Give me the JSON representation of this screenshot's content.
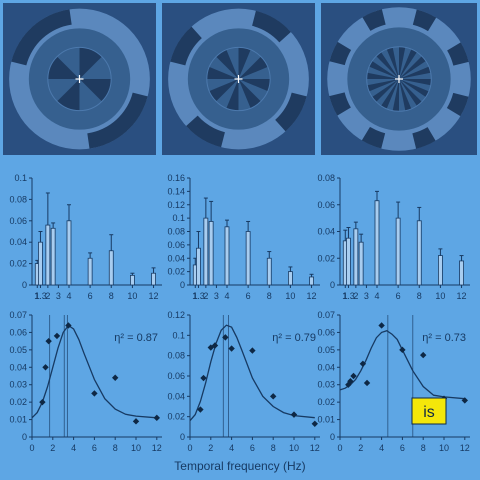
{
  "colors": {
    "page_bg": "#5ea6e4",
    "stimulus_bg": "#2a4f80",
    "ring_light": "#5b88bd",
    "ring_dark": "#1f3b60",
    "bar_fill": "#a8cdf0",
    "ink": "#173a63",
    "curve": "#173a63",
    "marker": "#0e2845",
    "callout_fill": "#f4e70a"
  },
  "stimuli": [
    {
      "name": "stimulus-4-cycle",
      "segments": 4
    },
    {
      "name": "stimulus-8-cycle",
      "segments": 8
    },
    {
      "name": "stimulus-16-cycle",
      "segments": 16
    }
  ],
  "xlabel": "Temporal frequency (Hz)",
  "callout_text": "is",
  "chart_data": [
    {
      "type": "bar",
      "panel": "top-left",
      "x": [
        1,
        1.3,
        2,
        2.5,
        4,
        6,
        8,
        10,
        12
      ],
      "values": [
        0.02,
        0.04,
        0.056,
        0.053,
        0.06,
        0.025,
        0.032,
        0.009,
        0.011
      ],
      "errors": [
        0.003,
        0.01,
        0.03,
        0.005,
        0.015,
        0.005,
        0.015,
        0.002,
        0.005
      ],
      "xlim": [
        0.5,
        12.8
      ],
      "ylim": [
        0,
        0.1
      ],
      "yticks": [
        0,
        0.02,
        0.04,
        0.06,
        0.08,
        0.1
      ],
      "ytick_labels": [
        "0",
        "0.02",
        "0.04",
        "0.06",
        "0.08",
        "0.1"
      ],
      "xticks": [
        1,
        1.3,
        2,
        3,
        4,
        6,
        8,
        10,
        12
      ],
      "xtick_labels": [
        "1",
        "1.3",
        "2",
        "3",
        "4",
        "6",
        "8",
        "10",
        "12"
      ]
    },
    {
      "type": "bar",
      "panel": "top-middle",
      "x": [
        1,
        1.3,
        2,
        2.5,
        4,
        6,
        8,
        10,
        12
      ],
      "values": [
        0.03,
        0.055,
        0.1,
        0.095,
        0.087,
        0.08,
        0.04,
        0.02,
        0.012
      ],
      "errors": [
        0.01,
        0.025,
        0.03,
        0.03,
        0.01,
        0.015,
        0.01,
        0.007,
        0.004
      ],
      "xlim": [
        0.5,
        12.8
      ],
      "ylim": [
        0,
        0.16
      ],
      "yticks": [
        0,
        0.02,
        0.04,
        0.06,
        0.08,
        0.1,
        0.12,
        0.14,
        0.16
      ],
      "ytick_labels": [
        "0",
        "0.02",
        "0.04",
        "0.06",
        "0.08",
        "0.1",
        "0.12",
        "0.14",
        "0.16"
      ],
      "xticks": [
        1,
        1.3,
        2,
        3,
        4,
        6,
        8,
        10,
        12
      ],
      "xtick_labels": [
        "1",
        "1.3",
        "2",
        "3",
        "4",
        "6",
        "8",
        "10",
        "12"
      ]
    },
    {
      "type": "bar",
      "panel": "top-right",
      "x": [
        1,
        1.3,
        2,
        2.5,
        4,
        6,
        8,
        10,
        12
      ],
      "values": [
        0.033,
        0.035,
        0.042,
        0.032,
        0.063,
        0.05,
        0.048,
        0.022,
        0.018
      ],
      "errors": [
        0.008,
        0.008,
        0.005,
        0.006,
        0.007,
        0.012,
        0.01,
        0.005,
        0.004
      ],
      "xlim": [
        0.5,
        12.8
      ],
      "ylim": [
        0,
        0.08
      ],
      "yticks": [
        0,
        0.02,
        0.04,
        0.06,
        0.08
      ],
      "ytick_labels": [
        "0",
        "0.02",
        "0.04",
        "0.06",
        "0.08"
      ],
      "xticks": [
        1,
        1.3,
        2,
        3,
        4,
        6,
        8,
        10,
        12
      ],
      "xtick_labels": [
        "1",
        "1.3",
        "2",
        "3",
        "4",
        "6",
        "8",
        "10",
        "12"
      ]
    },
    {
      "type": "scatter",
      "panel": "bottom-left",
      "points": [
        [
          1,
          0.02
        ],
        [
          1.3,
          0.04
        ],
        [
          1.6,
          0.055
        ],
        [
          2.4,
          0.058
        ],
        [
          3.5,
          0.064
        ],
        [
          6,
          0.025
        ],
        [
          8,
          0.034
        ],
        [
          10,
          0.009
        ],
        [
          12,
          0.011
        ]
      ],
      "curve": [
        [
          0,
          0.011
        ],
        [
          0.5,
          0.014
        ],
        [
          1,
          0.02
        ],
        [
          1.5,
          0.029
        ],
        [
          2,
          0.04
        ],
        [
          2.5,
          0.051
        ],
        [
          3,
          0.06
        ],
        [
          3.5,
          0.064
        ],
        [
          4,
          0.062
        ],
        [
          4.5,
          0.056
        ],
        [
          5,
          0.048
        ],
        [
          6,
          0.033
        ],
        [
          7,
          0.022
        ],
        [
          8,
          0.016
        ],
        [
          9,
          0.013
        ],
        [
          10,
          0.012
        ],
        [
          12,
          0.011
        ]
      ],
      "vlines": [
        1.7,
        3.1,
        3.4
      ],
      "annotation": "η² = 0.87",
      "xlim": [
        0,
        12.5
      ],
      "ylim": [
        0,
        0.07
      ],
      "yticks": [
        0,
        0.01,
        0.02,
        0.03,
        0.04,
        0.05,
        0.06,
        0.07
      ],
      "ytick_labels": [
        "0",
        "0.01",
        "0.02",
        "0.03",
        "0.04",
        "0.05",
        "0.06",
        "0.07"
      ],
      "xticks": [
        0,
        2,
        4,
        6,
        8,
        10,
        12
      ],
      "xtick_labels": [
        "0",
        "2",
        "4",
        "6",
        "8",
        "10",
        "12"
      ]
    },
    {
      "type": "scatter",
      "panel": "bottom-middle",
      "points": [
        [
          1,
          0.027
        ],
        [
          1.3,
          0.058
        ],
        [
          2,
          0.088
        ],
        [
          2.4,
          0.09
        ],
        [
          3.4,
          0.098
        ],
        [
          4,
          0.087
        ],
        [
          6,
          0.085
        ],
        [
          8,
          0.04
        ],
        [
          10,
          0.022
        ],
        [
          12,
          0.013
        ]
      ],
      "curve": [
        [
          0,
          0.016
        ],
        [
          0.5,
          0.022
        ],
        [
          1,
          0.035
        ],
        [
          1.5,
          0.053
        ],
        [
          2,
          0.074
        ],
        [
          2.5,
          0.092
        ],
        [
          3,
          0.105
        ],
        [
          3.5,
          0.11
        ],
        [
          4,
          0.108
        ],
        [
          4.5,
          0.098
        ],
        [
          5,
          0.085
        ],
        [
          6,
          0.058
        ],
        [
          7,
          0.04
        ],
        [
          8,
          0.03
        ],
        [
          9,
          0.024
        ],
        [
          10,
          0.021
        ],
        [
          12,
          0.019
        ]
      ],
      "vlines": [
        3.2,
        3.7
      ],
      "annotation": "η² = 0.79",
      "xlim": [
        0,
        12.5
      ],
      "ylim": [
        0,
        0.12
      ],
      "yticks": [
        0,
        0.02,
        0.04,
        0.06,
        0.08,
        0.1,
        0.12
      ],
      "ytick_labels": [
        "0",
        "0.02",
        "0.04",
        "0.06",
        "0.08",
        "0.1",
        "0.12"
      ],
      "xticks": [
        0,
        2,
        4,
        6,
        8,
        10,
        12
      ],
      "xtick_labels": [
        "0",
        "2",
        "4",
        "6",
        "8",
        "10",
        "12"
      ]
    },
    {
      "type": "scatter",
      "panel": "bottom-right",
      "points": [
        [
          0.8,
          0.03
        ],
        [
          1,
          0.032
        ],
        [
          1.3,
          0.035
        ],
        [
          2.2,
          0.042
        ],
        [
          2.6,
          0.031
        ],
        [
          4,
          0.064
        ],
        [
          6,
          0.05
        ],
        [
          8,
          0.047
        ],
        [
          10,
          0.022
        ],
        [
          12,
          0.021
        ]
      ],
      "curve": [
        [
          0,
          0.027
        ],
        [
          0.5,
          0.028
        ],
        [
          1,
          0.03
        ],
        [
          1.5,
          0.033
        ],
        [
          2,
          0.038
        ],
        [
          2.5,
          0.044
        ],
        [
          3,
          0.051
        ],
        [
          3.5,
          0.057
        ],
        [
          4,
          0.06
        ],
        [
          4.5,
          0.061
        ],
        [
          5,
          0.059
        ],
        [
          5.5,
          0.056
        ],
        [
          6,
          0.05
        ],
        [
          7,
          0.038
        ],
        [
          8,
          0.029
        ],
        [
          9,
          0.024
        ],
        [
          10,
          0.023
        ],
        [
          12,
          0.022
        ]
      ],
      "vlines": [
        4.6,
        7
      ],
      "annotation": "η² = 0.73",
      "xlim": [
        0,
        12.5
      ],
      "ylim": [
        0,
        0.07
      ],
      "yticks": [
        0,
        0.01,
        0.02,
        0.03,
        0.04,
        0.05,
        0.06,
        0.07
      ],
      "ytick_labels": [
        "0",
        "0.01",
        "0.02",
        "0.03",
        "0.04",
        "0.05",
        "0.06",
        "0.07"
      ],
      "xticks": [
        0,
        2,
        4,
        6,
        8,
        10,
        12
      ],
      "xtick_labels": [
        "0",
        "2",
        "4",
        "6",
        "8",
        "10",
        "12"
      ]
    }
  ]
}
